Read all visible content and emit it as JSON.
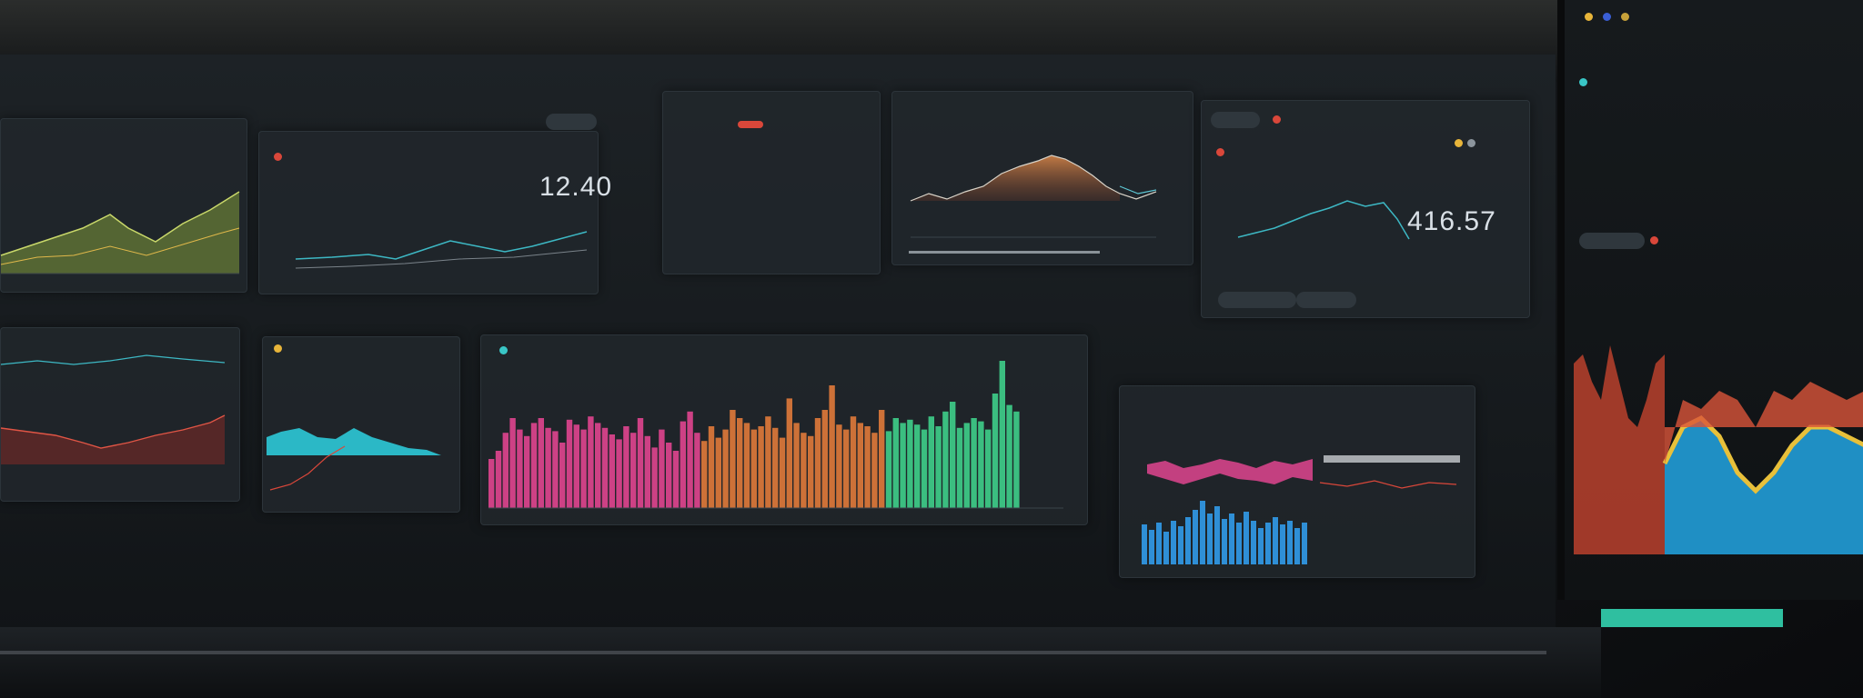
{
  "top_bar": {
    "left_label": "",
    "center_label": "",
    "right_labels": [
      "",
      "",
      ""
    ]
  },
  "panel_a": {
    "title": "",
    "ticks": [
      "",
      "",
      "",
      ""
    ]
  },
  "panel_b": {
    "title": "",
    "tabs": [
      "",
      ""
    ],
    "legend": [
      "",
      "",
      ""
    ],
    "value": "12.40",
    "subtitle": ""
  },
  "panel_c": {
    "title": "",
    "tab": "",
    "subtitle": ""
  },
  "panel_d": {
    "title": "",
    "subtitle": ""
  },
  "panel_e": {
    "tabs": [
      "",
      "",
      ""
    ],
    "legend": [
      "",
      ""
    ],
    "caption": "",
    "value": "416.57",
    "buttons": [
      "",
      ""
    ]
  },
  "panel_f": {
    "title": "",
    "legend": ""
  },
  "panel_g": {
    "title": "",
    "subtitle": ""
  },
  "panel_h": {
    "title": "",
    "subtitle": "",
    "corner": ""
  },
  "panel_i": {
    "title": "",
    "legend_lines": [
      "",
      ""
    ]
  },
  "side": {
    "header": "",
    "tab": ""
  },
  "colors": {
    "background": "#0b0d10",
    "panel": "#21272c",
    "accent_teal": "#39c6c6",
    "accent_pink": "#e0458f",
    "accent_orange": "#e07a3a",
    "accent_green": "#3ecf8a",
    "accent_red": "#d9473a",
    "accent_blue": "#2f8fd6"
  },
  "icons": [
    "status-red-dot",
    "status-cyan-dot",
    "status-yellow-dot",
    "info-icon"
  ]
}
